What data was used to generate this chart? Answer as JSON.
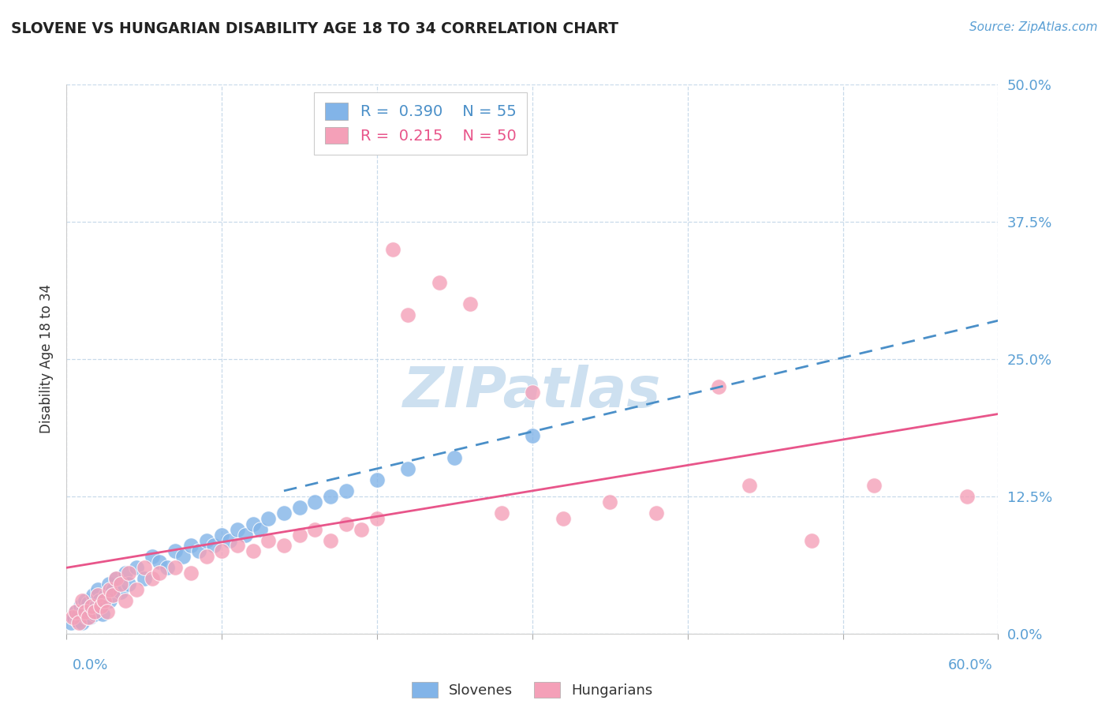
{
  "title": "SLOVENE VS HUNGARIAN DISABILITY AGE 18 TO 34 CORRELATION CHART",
  "source_text": "Source: ZipAtlas.com",
  "ylabel": "Disability Age 18 to 34",
  "xlim": [
    0.0,
    60.0
  ],
  "ylim": [
    0.0,
    50.0
  ],
  "yticks": [
    0.0,
    12.5,
    25.0,
    37.5,
    50.0
  ],
  "xticks": [
    0.0,
    10.0,
    20.0,
    30.0,
    40.0,
    50.0,
    60.0
  ],
  "slovene_color": "#82b4e8",
  "hungarian_color": "#f4a0b8",
  "slovene_R": 0.39,
  "slovene_N": 55,
  "hungarian_R": 0.215,
  "hungarian_N": 50,
  "trendline_blue_color": "#4a8fc8",
  "trendline_pink_color": "#e8558a",
  "slovene_scatter": [
    [
      0.3,
      1.0
    ],
    [
      0.5,
      1.5
    ],
    [
      0.6,
      2.0
    ],
    [
      0.7,
      1.2
    ],
    [
      0.8,
      1.8
    ],
    [
      0.9,
      2.5
    ],
    [
      1.0,
      1.0
    ],
    [
      1.1,
      2.2
    ],
    [
      1.2,
      3.0
    ],
    [
      1.3,
      1.5
    ],
    [
      1.4,
      2.8
    ],
    [
      1.5,
      1.5
    ],
    [
      1.6,
      2.0
    ],
    [
      1.7,
      3.5
    ],
    [
      1.8,
      1.8
    ],
    [
      1.9,
      2.5
    ],
    [
      2.0,
      4.0
    ],
    [
      2.1,
      3.0
    ],
    [
      2.2,
      2.5
    ],
    [
      2.3,
      1.8
    ],
    [
      2.5,
      3.5
    ],
    [
      2.7,
      4.5
    ],
    [
      2.8,
      3.0
    ],
    [
      3.0,
      4.0
    ],
    [
      3.2,
      5.0
    ],
    [
      3.5,
      3.8
    ],
    [
      3.8,
      5.5
    ],
    [
      4.0,
      4.5
    ],
    [
      4.5,
      6.0
    ],
    [
      5.0,
      5.0
    ],
    [
      5.5,
      7.0
    ],
    [
      6.0,
      6.5
    ],
    [
      6.5,
      6.0
    ],
    [
      7.0,
      7.5
    ],
    [
      7.5,
      7.0
    ],
    [
      8.0,
      8.0
    ],
    [
      8.5,
      7.5
    ],
    [
      9.0,
      8.5
    ],
    [
      9.5,
      8.0
    ],
    [
      10.0,
      9.0
    ],
    [
      10.5,
      8.5
    ],
    [
      11.0,
      9.5
    ],
    [
      11.5,
      9.0
    ],
    [
      12.0,
      10.0
    ],
    [
      12.5,
      9.5
    ],
    [
      13.0,
      10.5
    ],
    [
      14.0,
      11.0
    ],
    [
      15.0,
      11.5
    ],
    [
      16.0,
      12.0
    ],
    [
      17.0,
      12.5
    ],
    [
      18.0,
      13.0
    ],
    [
      20.0,
      14.0
    ],
    [
      22.0,
      15.0
    ],
    [
      25.0,
      16.0
    ],
    [
      30.0,
      18.0
    ]
  ],
  "hungarian_scatter": [
    [
      0.4,
      1.5
    ],
    [
      0.6,
      2.0
    ],
    [
      0.8,
      1.0
    ],
    [
      1.0,
      3.0
    ],
    [
      1.2,
      2.0
    ],
    [
      1.4,
      1.5
    ],
    [
      1.6,
      2.5
    ],
    [
      1.8,
      2.0
    ],
    [
      2.0,
      3.5
    ],
    [
      2.2,
      2.5
    ],
    [
      2.4,
      3.0
    ],
    [
      2.6,
      2.0
    ],
    [
      2.8,
      4.0
    ],
    [
      3.0,
      3.5
    ],
    [
      3.2,
      5.0
    ],
    [
      3.5,
      4.5
    ],
    [
      3.8,
      3.0
    ],
    [
      4.0,
      5.5
    ],
    [
      4.5,
      4.0
    ],
    [
      5.0,
      6.0
    ],
    [
      5.5,
      5.0
    ],
    [
      6.0,
      5.5
    ],
    [
      7.0,
      6.0
    ],
    [
      8.0,
      5.5
    ],
    [
      9.0,
      7.0
    ],
    [
      10.0,
      7.5
    ],
    [
      11.0,
      8.0
    ],
    [
      12.0,
      7.5
    ],
    [
      13.0,
      8.5
    ],
    [
      14.0,
      8.0
    ],
    [
      15.0,
      9.0
    ],
    [
      16.0,
      9.5
    ],
    [
      17.0,
      8.5
    ],
    [
      18.0,
      10.0
    ],
    [
      19.0,
      9.5
    ],
    [
      20.0,
      10.5
    ],
    [
      21.0,
      35.0
    ],
    [
      22.0,
      29.0
    ],
    [
      24.0,
      32.0
    ],
    [
      26.0,
      30.0
    ],
    [
      28.0,
      11.0
    ],
    [
      30.0,
      22.0
    ],
    [
      32.0,
      10.5
    ],
    [
      35.0,
      12.0
    ],
    [
      38.0,
      11.0
    ],
    [
      42.0,
      22.5
    ],
    [
      44.0,
      13.5
    ],
    [
      48.0,
      8.5
    ],
    [
      52.0,
      13.5
    ],
    [
      58.0,
      12.5
    ]
  ],
  "background_color": "#ffffff",
  "grid_color": "#c8daea",
  "watermark_color": "#cde0f0"
}
